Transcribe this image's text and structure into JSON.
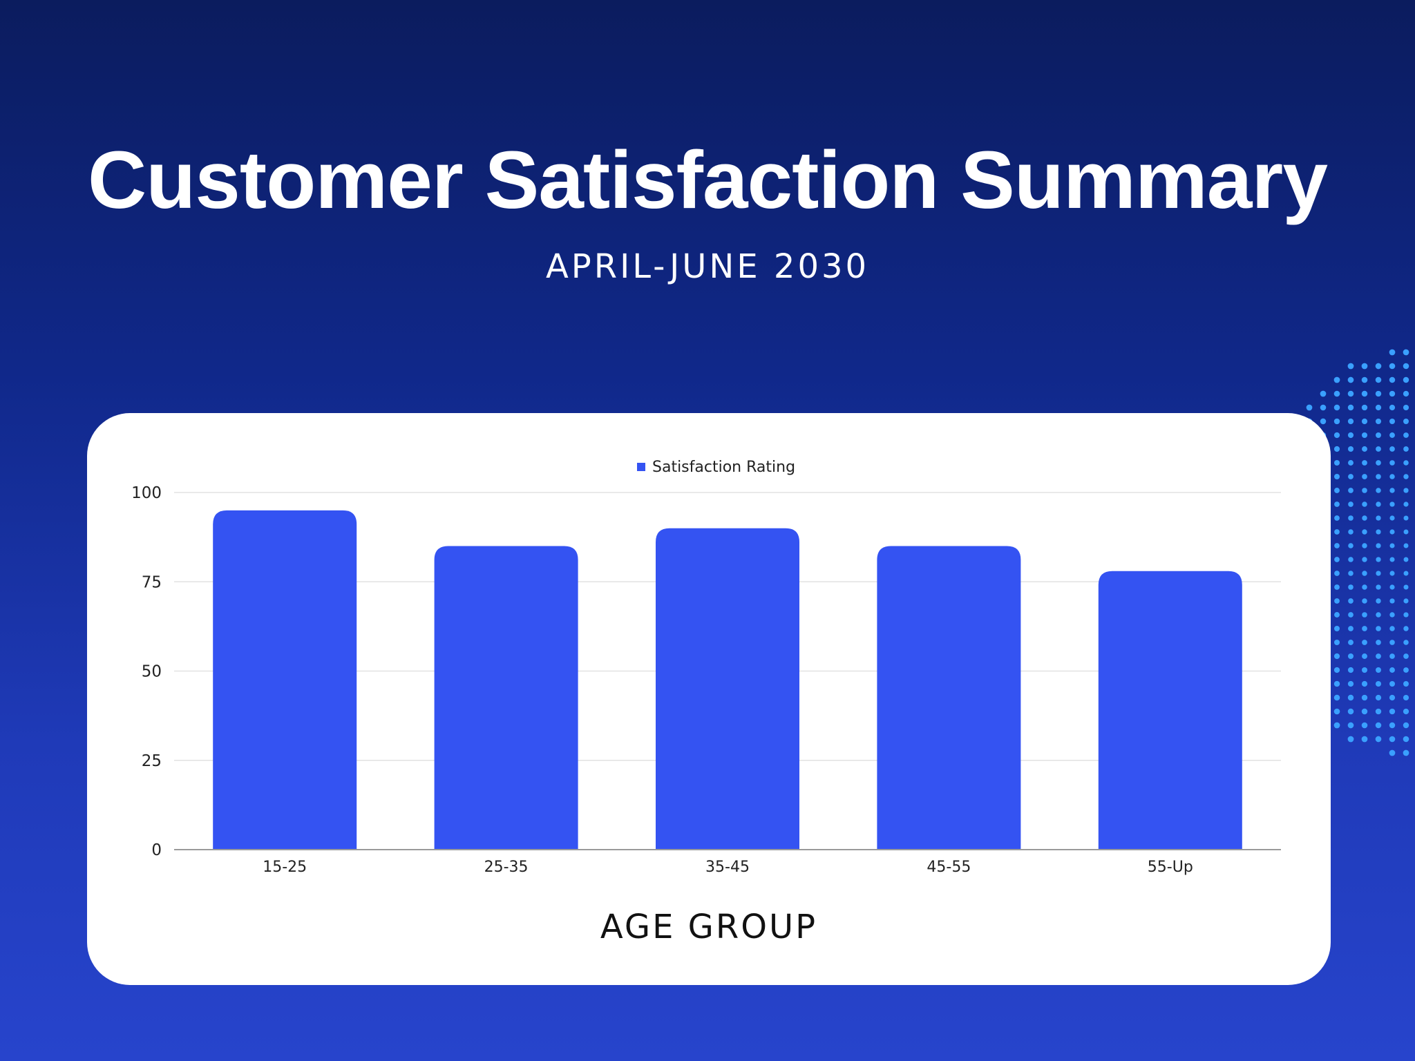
{
  "header": {
    "title": "Customer Satisfaction Summary",
    "subtitle": "APRIL-JUNE 2030"
  },
  "colors": {
    "bar": "#3453f2",
    "background_top": "#0b1c5e",
    "background_bottom": "#2744cc",
    "dots": "#3aa0ff",
    "card": "#ffffff",
    "grid": "#e2e2e2"
  },
  "chart_data": {
    "type": "bar",
    "categories": [
      "15-25",
      "25-35",
      "35-45",
      "45-55",
      "55-Up"
    ],
    "series": [
      {
        "name": "Satisfaction Rating",
        "values": [
          95,
          85,
          90,
          85,
          78
        ]
      }
    ],
    "xlabel": "AGE GROUP",
    "ylabel": "",
    "ylim": [
      0,
      100
    ],
    "yticks": [
      0,
      25,
      50,
      75,
      100
    ],
    "grid": true,
    "legend": "top-center"
  }
}
